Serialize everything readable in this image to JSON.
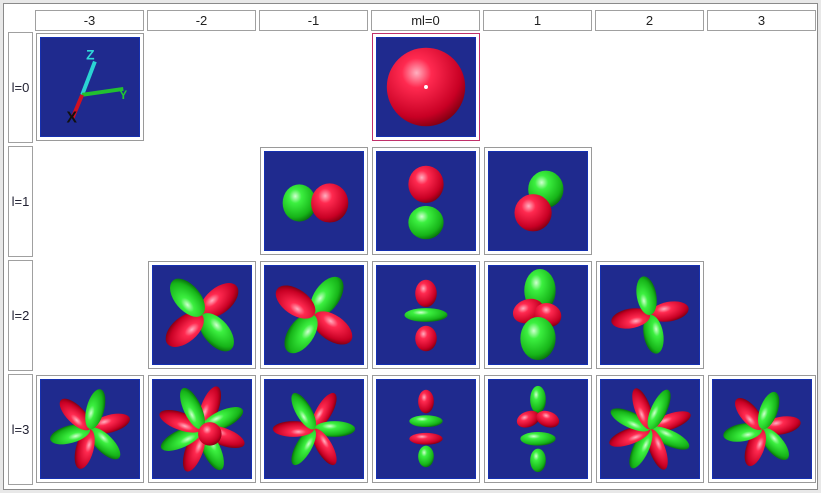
{
  "columns": [
    "-3",
    "-2",
    "-1",
    "ml=0",
    "1",
    "2",
    "3"
  ],
  "rows": [
    "l=0",
    "l=1",
    "l=2",
    "l=3"
  ],
  "cells": [
    {
      "l": 0,
      "col": 0,
      "kind": "axes"
    },
    {
      "l": 0,
      "col": 3,
      "kind": "s",
      "selected": true
    },
    {
      "l": 1,
      "col": 2,
      "kind": "p-1"
    },
    {
      "l": 1,
      "col": 3,
      "kind": "p0"
    },
    {
      "l": 1,
      "col": 4,
      "kind": "p1"
    },
    {
      "l": 2,
      "col": 1,
      "kind": "d-2"
    },
    {
      "l": 2,
      "col": 2,
      "kind": "d-1"
    },
    {
      "l": 2,
      "col": 3,
      "kind": "d0"
    },
    {
      "l": 2,
      "col": 4,
      "kind": "d1"
    },
    {
      "l": 2,
      "col": 5,
      "kind": "d2"
    },
    {
      "l": 3,
      "col": 0,
      "kind": "f-3"
    },
    {
      "l": 3,
      "col": 1,
      "kind": "f-2"
    },
    {
      "l": 3,
      "col": 2,
      "kind": "f-1"
    },
    {
      "l": 3,
      "col": 3,
      "kind": "f0"
    },
    {
      "l": 3,
      "col": 4,
      "kind": "f1"
    },
    {
      "l": 3,
      "col": 5,
      "kind": "f2"
    },
    {
      "l": 3,
      "col": 6,
      "kind": "f3"
    }
  ],
  "colors": {
    "positive": "#e8123a",
    "negative": "#22d62a",
    "background": "#1f2a8e"
  }
}
